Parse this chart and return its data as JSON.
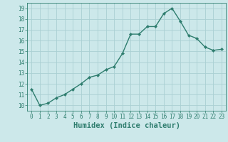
{
  "x": [
    0,
    1,
    2,
    3,
    4,
    5,
    6,
    7,
    8,
    9,
    10,
    11,
    12,
    13,
    14,
    15,
    16,
    17,
    18,
    19,
    20,
    21,
    22,
    23
  ],
  "y": [
    11.5,
    10.0,
    10.2,
    10.7,
    11.0,
    11.5,
    12.0,
    12.6,
    12.8,
    13.3,
    13.6,
    14.8,
    16.6,
    16.6,
    17.3,
    17.3,
    18.5,
    19.0,
    17.8,
    16.5,
    16.2,
    15.4,
    15.1,
    15.2
  ],
  "line_color": "#2e7d6e",
  "marker": "D",
  "marker_size": 2.2,
  "bg_color": "#cce8ea",
  "grid_color": "#aad0d3",
  "xlabel": "Humidex (Indice chaleur)",
  "xlim": [
    -0.5,
    23.5
  ],
  "ylim": [
    9.5,
    19.5
  ],
  "yticks": [
    10,
    11,
    12,
    13,
    14,
    15,
    16,
    17,
    18,
    19
  ],
  "xticks": [
    0,
    1,
    2,
    3,
    4,
    5,
    6,
    7,
    8,
    9,
    10,
    11,
    12,
    13,
    14,
    15,
    16,
    17,
    18,
    19,
    20,
    21,
    22,
    23
  ],
  "tick_label_size": 5.5,
  "xlabel_size": 7.5,
  "tick_color": "#2e7d6e",
  "spine_color": "#2e7d6e",
  "line_width": 1.0
}
